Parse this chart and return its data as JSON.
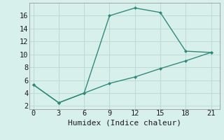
{
  "title": "",
  "xlabel": "Humidex (Indice chaleur)",
  "line1_x": [
    0,
    3,
    6,
    9,
    12,
    15,
    18,
    21
  ],
  "line1_y": [
    5.3,
    2.5,
    4.0,
    16.0,
    17.2,
    16.5,
    10.5,
    10.3
  ],
  "line2_x": [
    0,
    3,
    6,
    9,
    12,
    15,
    18,
    21
  ],
  "line2_y": [
    5.3,
    2.5,
    4.0,
    5.5,
    6.5,
    7.8,
    9.0,
    10.3
  ],
  "line_color": "#2e8b7a",
  "bg_color": "#d8f0ec",
  "grid_color": "#b8d8d0",
  "xlim": [
    -0.5,
    22
  ],
  "ylim": [
    1.5,
    18
  ],
  "xticks": [
    0,
    3,
    6,
    9,
    12,
    15,
    18,
    21
  ],
  "yticks": [
    2,
    4,
    6,
    8,
    10,
    12,
    14,
    16
  ],
  "tick_fontsize": 7.5,
  "xlabel_fontsize": 8
}
